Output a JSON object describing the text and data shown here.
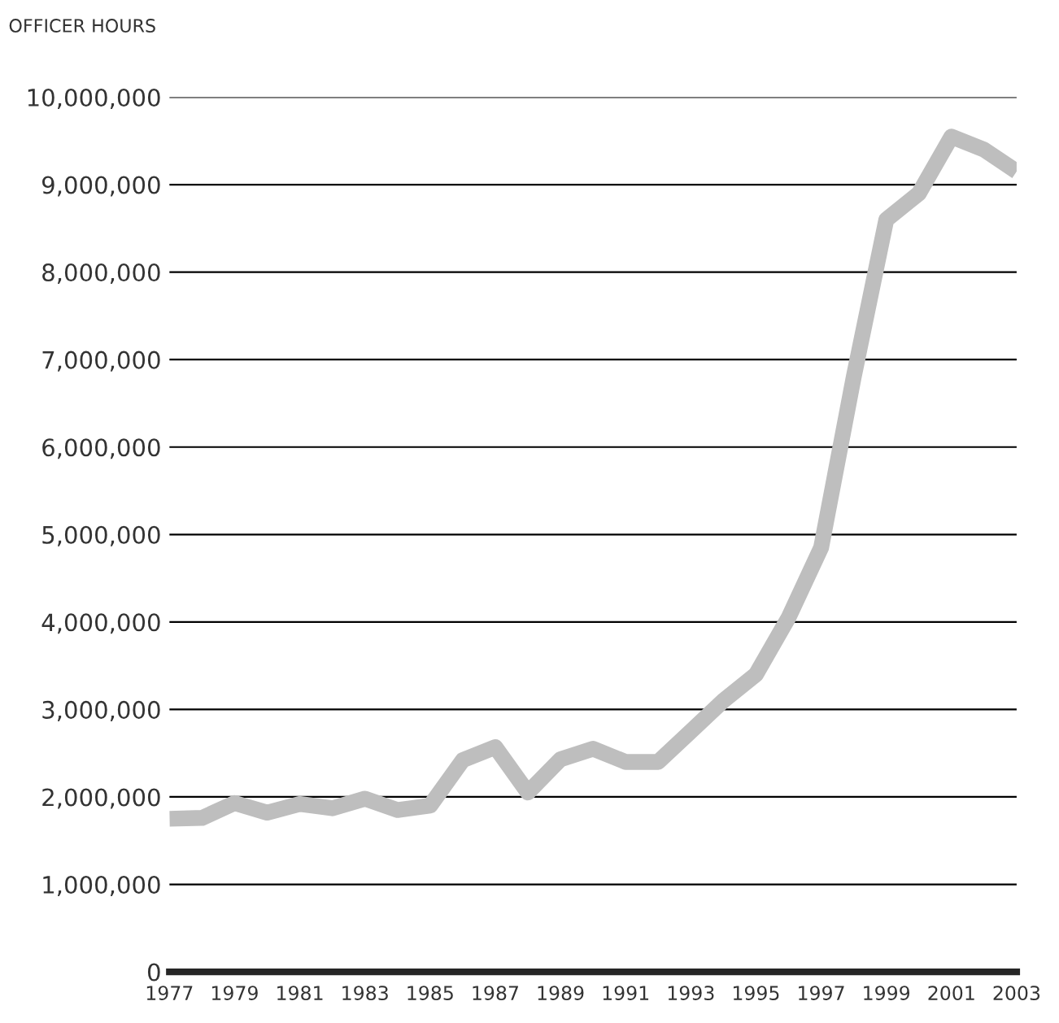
{
  "chart_data": {
    "type": "line",
    "ylabel": "OFFICER HOURS",
    "x": [
      1977,
      1978,
      1979,
      1980,
      1981,
      1982,
      1983,
      1984,
      1985,
      1986,
      1987,
      1988,
      1989,
      1990,
      1991,
      1992,
      1993,
      1994,
      1995,
      1996,
      1997,
      1998,
      1999,
      2000,
      2001,
      2002,
      2003
    ],
    "series": [
      {
        "color": "#bebebe",
        "values": [
          1750000,
          1760000,
          1930000,
          1820000,
          1920000,
          1870000,
          1980000,
          1850000,
          1900000,
          2420000,
          2570000,
          2050000,
          2430000,
          2550000,
          2400000,
          2400000,
          2750000,
          3100000,
          3400000,
          4050000,
          4850000,
          6800000,
          8600000,
          8900000,
          9550000,
          9400000,
          9150000
        ]
      }
    ],
    "xlim": [
      1977,
      2003
    ],
    "xticks": [
      1977,
      1979,
      1981,
      1983,
      1985,
      1987,
      1989,
      1991,
      1993,
      1995,
      1997,
      1999,
      2001,
      2003
    ],
    "ylim": [
      0,
      10000000
    ],
    "yticks": [
      0,
      {
        "value": 1000000,
        "label": "1,000,000"
      },
      {
        "value": 2000000,
        "label": "2,000,000"
      },
      {
        "value": 3000000,
        "label": "3,000,000"
      },
      {
        "value": 4000000,
        "label": "4,000,000"
      },
      {
        "value": 5000000,
        "label": "5,000,000"
      },
      {
        "value": 6000000,
        "label": "6,000,000"
      },
      {
        "value": 7000000,
        "label": "7,000,000"
      },
      {
        "value": 8000000,
        "label": "8,000,000"
      },
      {
        "value": 9000000,
        "label": "9,000,000"
      },
      {
        "value": 10000000,
        "label": "10,000,000"
      }
    ],
    "grid": "y",
    "line_style": "solid"
  }
}
